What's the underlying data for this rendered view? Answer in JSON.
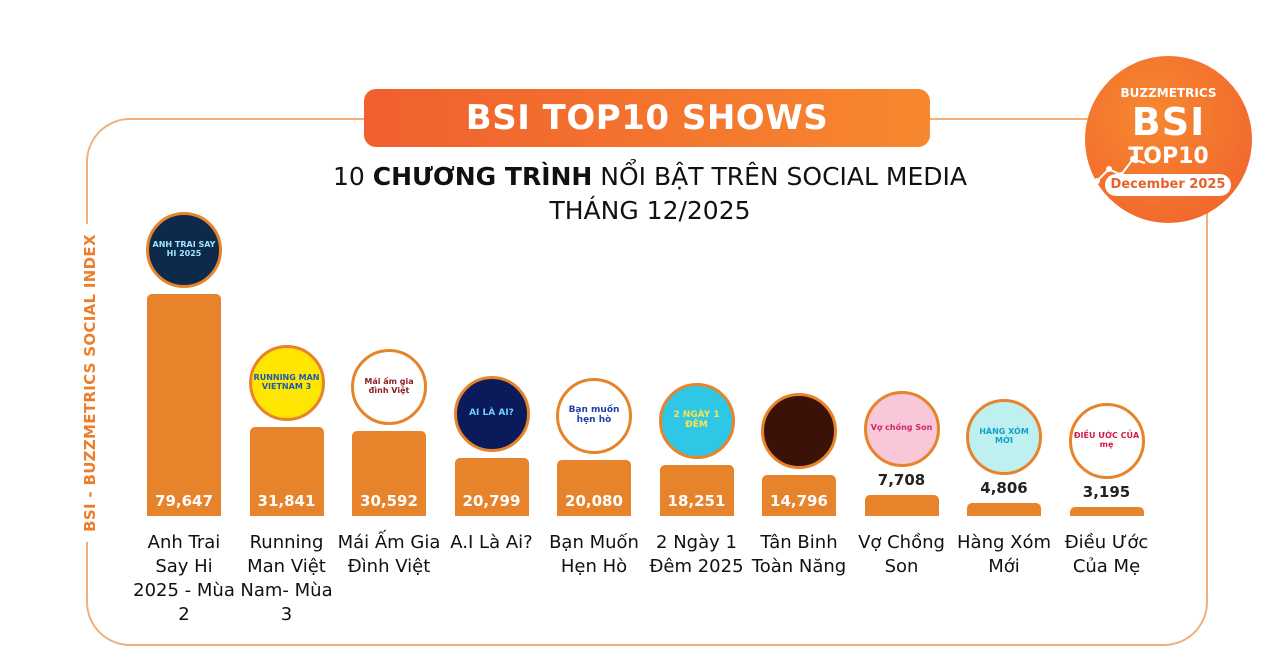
{
  "header": {
    "banner": "BSI TOP10 SHOWS",
    "subtitle_prefix": "10 ",
    "subtitle_bold": "CHƯƠNG TRÌNH",
    "subtitle_suffix": " NỔI BẬT TRÊN SOCIAL MEDIA",
    "subtitle_line2": "THÁNG 12/2025"
  },
  "badge": {
    "brand": "BUZZMETRICS",
    "title": "BSI",
    "subtitle": "TOP10",
    "month": "December 2025"
  },
  "side_label": "BSI - BUZZMETRICS SOCIAL INDEX",
  "colors": {
    "bar": "#e7832a",
    "accent": "#f05f2e",
    "border": "#f2b07a"
  },
  "chart_data": {
    "type": "bar",
    "title": "BSI TOP10 SHOWS",
    "ylabel": "BSI - BUZZMETRICS SOCIAL INDEX",
    "ylim": [
      0,
      79647
    ],
    "categories": [
      "Anh Trai Say Hi 2025 - Mùa 2",
      "Running Man Việt Nam- Mùa 3",
      "Mái Ấm Gia Đình Việt",
      "A.I Là Ai?",
      "Bạn Muốn Hẹn Hò",
      "2 Ngày 1 Đêm 2025",
      "Tân Binh Toàn Năng",
      "Vợ Chồng Son",
      "Hàng Xóm Mới",
      "Điều Ước Của Mẹ"
    ],
    "values": [
      79647,
      31841,
      30592,
      20799,
      20080,
      18251,
      14796,
      7708,
      4806,
      3195
    ],
    "value_labels": [
      "79,647",
      "31,841",
      "30,592",
      "20,799",
      "20,080",
      "18,251",
      "14,796",
      "7,708",
      "4,806",
      "3,195"
    ],
    "logo_texts": [
      "ANH TRAI SAY HI 2025",
      "RUNNING MAN VIETNAM 3",
      "Mái ấm gia đình Việt",
      "AI LÀ AI?",
      "Bạn muốn hẹn hò",
      "2 NGÀY 1 ĐÊM",
      "",
      "Vợ chồng Son",
      "HÀNG XÓM MỚI",
      "ĐIỀU ƯỚC CỦA mẹ"
    ]
  }
}
